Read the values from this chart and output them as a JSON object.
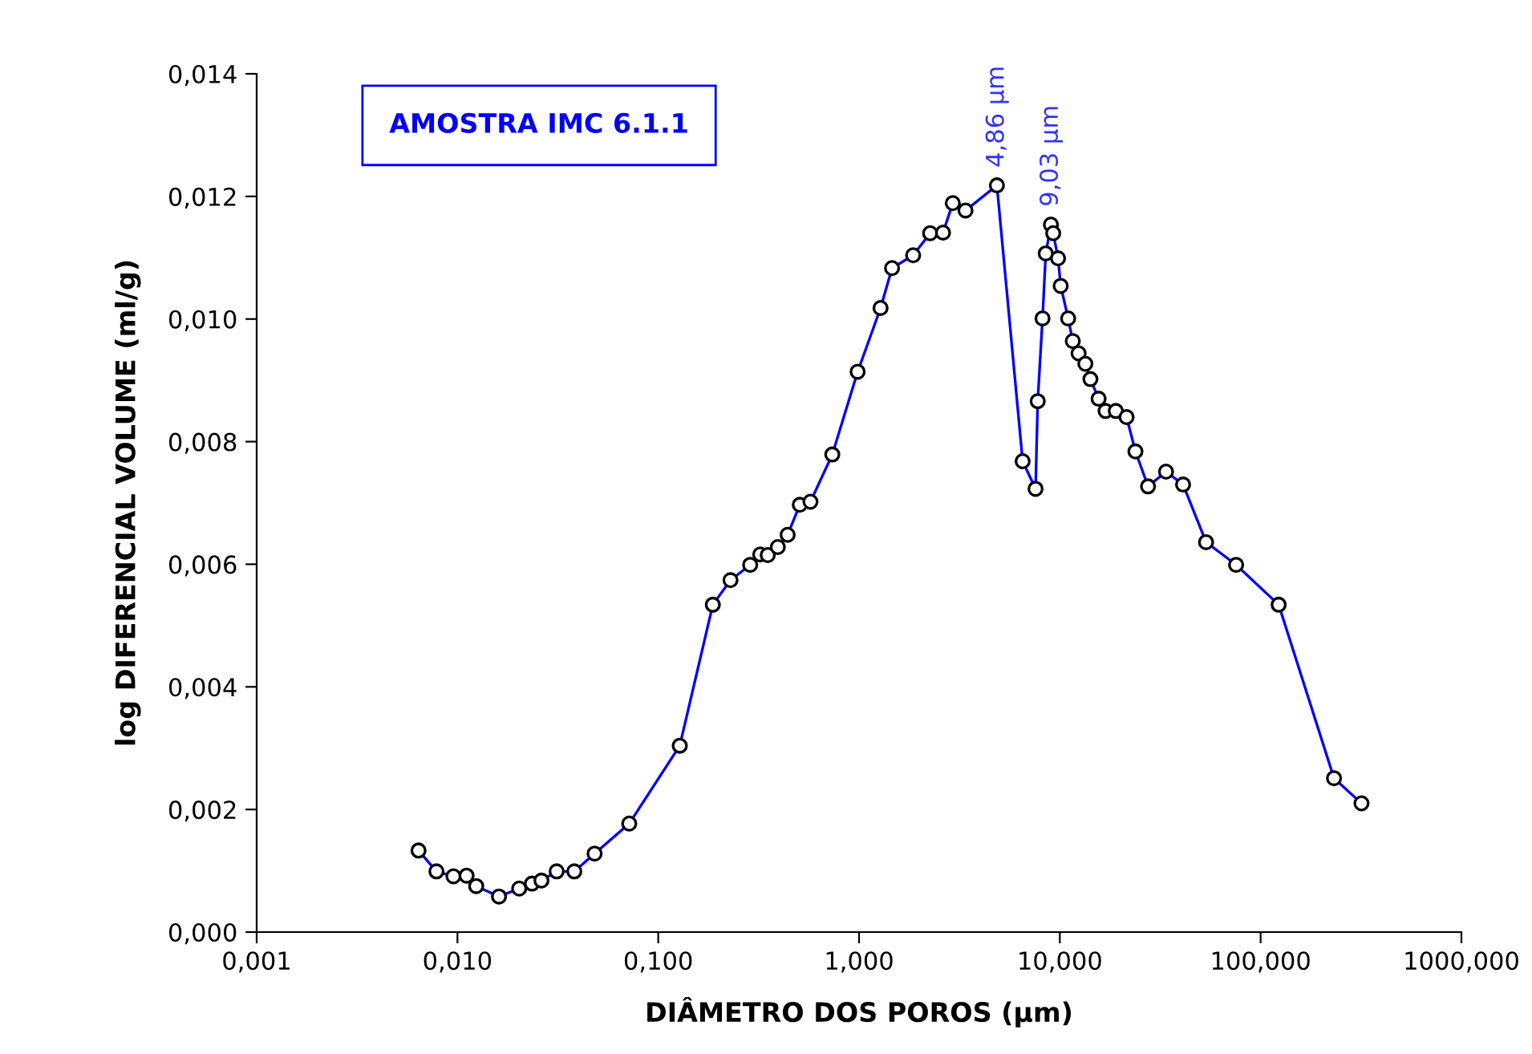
{
  "chart_data": {
    "type": "line",
    "title": "AMOSTRA IMC 6.1.1",
    "xlabel": "DIÂMETRO DOS POROS (µm)",
    "ylabel": "log DIFERENCIAL VOLUME (ml/g)",
    "x": [
      0.0064,
      0.00786,
      0.00955,
      0.0111,
      0.0124,
      0.0161,
      0.0203,
      0.0235,
      0.0262,
      0.0312,
      0.0382,
      0.0482,
      0.0717,
      0.128,
      0.187,
      0.229,
      0.287,
      0.322,
      0.351,
      0.394,
      0.441,
      0.507,
      0.573,
      0.736,
      0.984,
      1.28,
      1.46,
      1.86,
      2.26,
      2.62,
      2.93,
      3.39,
      4.86,
      6.53,
      7.57,
      7.76,
      8.2,
      8.51,
      9.03,
      9.27,
      9.8,
      10.1,
      11.0,
      11.6,
      12.4,
      13.4,
      14.2,
      15.6,
      16.9,
      19.0,
      21.5,
      23.8,
      27.5,
      33.8,
      41.1,
      53.5,
      75.5,
      123,
      232,
      318
    ],
    "series": [
      {
        "color": "#0000ff",
        "values": [
          0.00133,
          0.00099,
          0.00091,
          0.00092,
          0.00075,
          0.00058,
          0.00071,
          0.00079,
          0.00084,
          0.00099,
          0.00099,
          0.00128,
          0.00177,
          0.00304,
          0.00534,
          0.00574,
          0.00599,
          0.00616,
          0.00615,
          0.00628,
          0.00648,
          0.00697,
          0.00702,
          0.00779,
          0.00914,
          0.01018,
          0.01083,
          0.01104,
          0.0114,
          0.01141,
          0.01189,
          0.01177,
          0.01218,
          0.00768,
          0.00723,
          0.00866,
          0.01001,
          0.01107,
          0.01154,
          0.0114,
          0.01099,
          0.01054,
          0.01001,
          0.00964,
          0.00944,
          0.00927,
          0.00902,
          0.0087,
          0.0085,
          0.0085,
          0.0084,
          0.00784,
          0.00727,
          0.00751,
          0.0073,
          0.00636,
          0.00599,
          0.00534,
          0.00251,
          0.0021
        ]
      }
    ],
    "log": "x",
    "marker": "circle",
    "line_style": "solid",
    "grid": false,
    "legend": false,
    "xlim": [
      0.001,
      1000
    ],
    "xticks": [
      {
        "value": 0.001,
        "label": "0,001"
      },
      {
        "value": 0.01,
        "label": "0,010"
      },
      {
        "value": 0.1,
        "label": "0,100"
      },
      {
        "value": 1,
        "label": "1,000"
      },
      {
        "value": 10,
        "label": "10,000"
      },
      {
        "value": 100,
        "label": "100,000"
      },
      {
        "value": 1000,
        "label": "1000,000"
      }
    ],
    "ylim": [
      0,
      0.014
    ],
    "yticks": [
      {
        "value": 0,
        "label": "0,000"
      },
      {
        "value": 0.002,
        "label": "0,002"
      },
      {
        "value": 0.004,
        "label": "0,004"
      },
      {
        "value": 0.006,
        "label": "0,006"
      },
      {
        "value": 0.008,
        "label": "0,008"
      },
      {
        "value": 0.01,
        "label": "0,010"
      },
      {
        "value": 0.012,
        "label": "0,012"
      },
      {
        "value": 0.014,
        "label": "0,014"
      }
    ],
    "annotations": [
      {
        "text": "4,86 µm",
        "x": 4.86,
        "y": 0.01218
      },
      {
        "text": "9,03 µm",
        "x": 9.03,
        "y": 0.01154
      }
    ]
  }
}
